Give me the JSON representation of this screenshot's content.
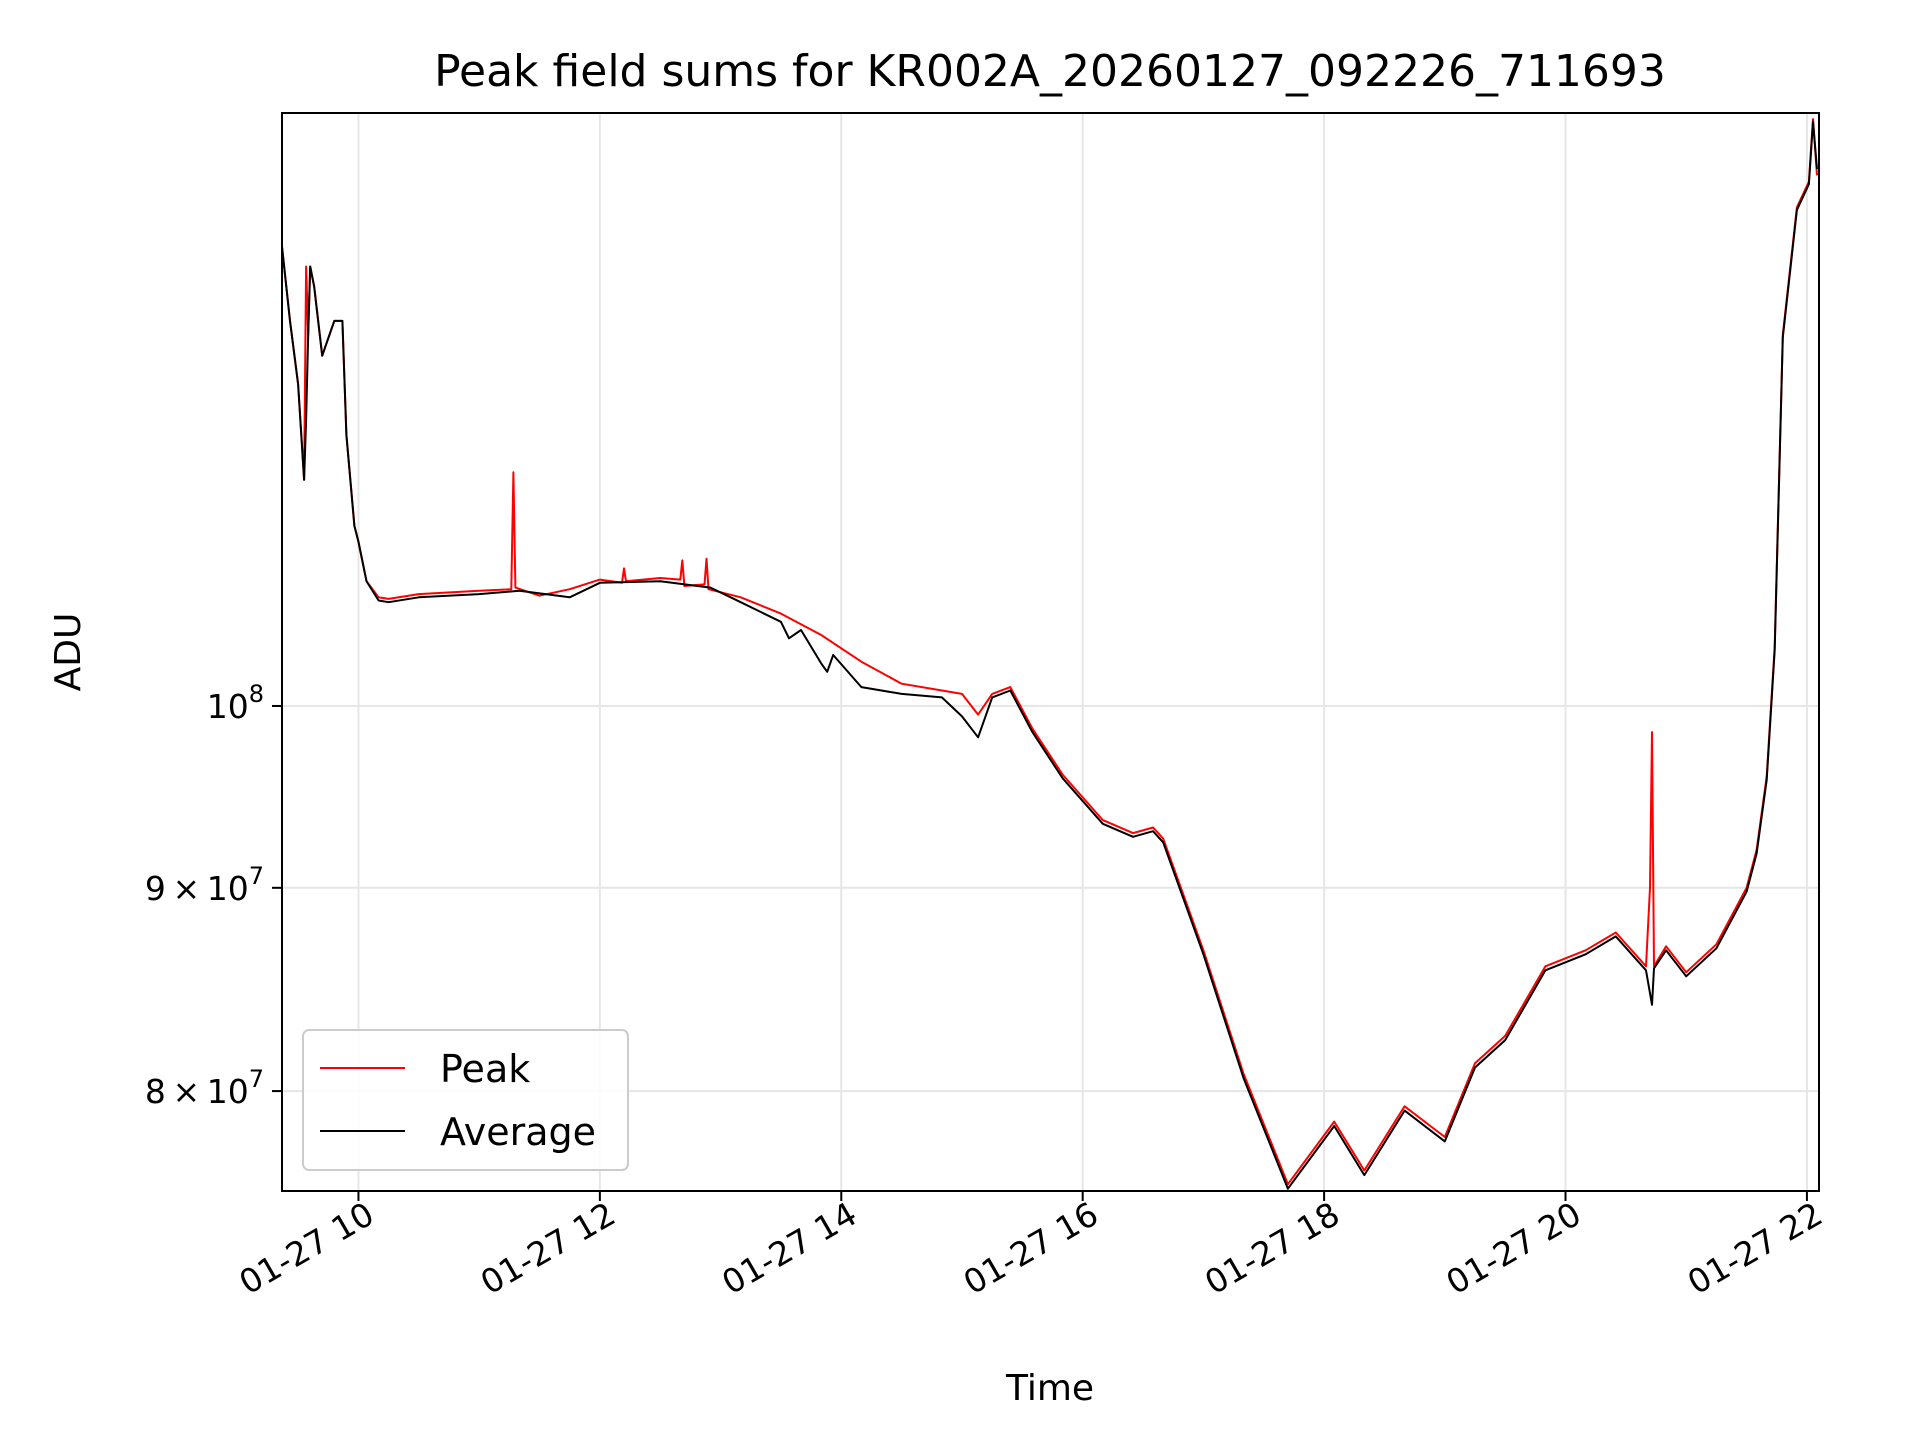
{
  "chart_data": {
    "type": "line",
    "title": "Peak field sums for KR002A_20260127_092226_711693",
    "xlabel": "Time",
    "ylabel": "ADU",
    "yscale": "log",
    "ylim": [
      75500000,
      141000000
    ],
    "xlim": [
      "2026-01-27 09:22",
      "2026-01-27 22:06"
    ],
    "grid": true,
    "legend_position": "lower-left",
    "x_ticks": [
      "01-27 10",
      "01-27 12",
      "01-27 14",
      "01-27 16",
      "01-27 18",
      "01-27 20",
      "01-27 22"
    ],
    "y_ticks": [
      {
        "value": 80000000,
        "mantissa": "8",
        "times": "×",
        "base": "10",
        "exp": "7"
      },
      {
        "value": 90000000,
        "mantissa": "9",
        "times": "×",
        "base": "10",
        "exp": "7"
      },
      {
        "value": 100000000,
        "mantissa": "",
        "times": "",
        "base": "10",
        "exp": "8"
      }
    ],
    "series": [
      {
        "name": "Peak",
        "color": "#ff0000",
        "x": [
          "2026-01-27 09:22",
          "2026-01-27 09:26",
          "2026-01-27 09:30",
          "2026-01-27 09:33",
          "2026-01-27 09:34",
          "2026-01-27 09:35",
          "2026-01-27 09:36",
          "2026-01-27 09:38",
          "2026-01-27 09:42",
          "2026-01-27 09:48",
          "2026-01-27 09:52",
          "2026-01-27 09:54",
          "2026-01-27 09:58",
          "2026-01-27 10:00",
          "2026-01-27 10:04",
          "2026-01-27 10:10",
          "2026-01-27 10:15",
          "2026-01-27 10:30",
          "2026-01-27 11:00",
          "2026-01-27 11:16",
          "2026-01-27 11:17",
          "2026-01-27 11:18",
          "2026-01-27 11:30",
          "2026-01-27 11:45",
          "2026-01-27 12:00",
          "2026-01-27 12:11",
          "2026-01-27 12:12",
          "2026-01-27 12:13",
          "2026-01-27 12:30",
          "2026-01-27 12:40",
          "2026-01-27 12:41",
          "2026-01-27 12:42",
          "2026-01-27 12:52",
          "2026-01-27 12:53",
          "2026-01-27 12:54",
          "2026-01-27 13:10",
          "2026-01-27 13:30",
          "2026-01-27 13:50",
          "2026-01-27 14:10",
          "2026-01-27 14:30",
          "2026-01-27 14:50",
          "2026-01-27 15:00",
          "2026-01-27 15:08",
          "2026-01-27 15:15",
          "2026-01-27 15:24",
          "2026-01-27 15:35",
          "2026-01-27 15:50",
          "2026-01-27 16:10",
          "2026-01-27 16:25",
          "2026-01-27 16:35",
          "2026-01-27 16:40",
          "2026-01-27 17:00",
          "2026-01-27 17:20",
          "2026-01-27 17:42",
          "2026-01-27 18:05",
          "2026-01-27 18:20",
          "2026-01-27 18:40",
          "2026-01-27 19:00",
          "2026-01-27 19:15",
          "2026-01-27 19:30",
          "2026-01-27 19:50",
          "2026-01-27 20:10",
          "2026-01-27 20:25",
          "2026-01-27 20:40",
          "2026-01-27 20:42",
          "2026-01-27 20:43",
          "2026-01-27 20:44",
          "2026-01-27 20:50",
          "2026-01-27 21:00",
          "2026-01-27 21:15",
          "2026-01-27 21:30",
          "2026-01-27 21:35",
          "2026-01-27 21:40",
          "2026-01-27 21:44",
          "2026-01-27 21:48",
          "2026-01-27 21:55",
          "2026-01-27 22:01",
          "2026-01-27 22:03",
          "2026-01-27 22:05"
        ],
        "values": [
          130500000,
          125000000,
          120500000,
          114000000,
          129000000,
          124000000,
          129000000,
          127500000,
          122500000,
          125000000,
          125000000,
          117000000,
          111000000,
          110000000,
          107500000,
          106500000,
          106400000,
          106700000,
          106900000,
          107000000,
          114500000,
          107100000,
          106600000,
          107000000,
          107600000,
          107400000,
          108300000,
          107500000,
          107700000,
          107600000,
          108800000,
          107200000,
          107300000,
          108900000,
          107000000,
          106500000,
          105500000,
          104200000,
          102600000,
          101300000,
          100900000,
          100700000,
          99500000,
          100700000,
          101100000,
          98700000,
          96100000,
          93600000,
          92900000,
          93200000,
          92600000,
          86800000,
          80800000,
          75800000,
          78600000,
          76400000,
          79300000,
          77900000,
          81300000,
          82600000,
          86000000,
          86800000,
          87700000,
          86000000,
          90000000,
          98500000,
          86000000,
          87000000,
          85700000,
          87100000,
          90000000,
          92000000,
          96000000,
          103500000,
          124000000,
          133500000,
          135500000,
          140500000,
          136000000
        ]
      },
      {
        "name": "Average",
        "color": "#000000",
        "x": [
          "2026-01-27 09:22",
          "2026-01-27 09:26",
          "2026-01-27 09:30",
          "2026-01-27 09:33",
          "2026-01-27 09:34",
          "2026-01-27 09:35",
          "2026-01-27 09:36",
          "2026-01-27 09:38",
          "2026-01-27 09:42",
          "2026-01-27 09:48",
          "2026-01-27 09:52",
          "2026-01-27 09:54",
          "2026-01-27 09:58",
          "2026-01-27 10:00",
          "2026-01-27 10:04",
          "2026-01-27 10:10",
          "2026-01-27 10:15",
          "2026-01-27 10:30",
          "2026-01-27 11:00",
          "2026-01-27 11:20",
          "2026-01-27 11:45",
          "2026-01-27 12:00",
          "2026-01-27 12:30",
          "2026-01-27 12:55",
          "2026-01-27 13:10",
          "2026-01-27 13:30",
          "2026-01-27 13:34",
          "2026-01-27 13:40",
          "2026-01-27 13:50",
          "2026-01-27 13:53",
          "2026-01-27 13:56",
          "2026-01-27 14:10",
          "2026-01-27 14:30",
          "2026-01-27 14:50",
          "2026-01-27 15:00",
          "2026-01-27 15:08",
          "2026-01-27 15:15",
          "2026-01-27 15:24",
          "2026-01-27 15:35",
          "2026-01-27 15:50",
          "2026-01-27 16:10",
          "2026-01-27 16:25",
          "2026-01-27 16:35",
          "2026-01-27 16:40",
          "2026-01-27 17:00",
          "2026-01-27 17:20",
          "2026-01-27 17:42",
          "2026-01-27 18:05",
          "2026-01-27 18:20",
          "2026-01-27 18:40",
          "2026-01-27 19:00",
          "2026-01-27 19:15",
          "2026-01-27 19:30",
          "2026-01-27 19:50",
          "2026-01-27 20:10",
          "2026-01-27 20:25",
          "2026-01-27 20:40",
          "2026-01-27 20:43",
          "2026-01-27 20:44",
          "2026-01-27 20:50",
          "2026-01-27 21:00",
          "2026-01-27 21:15",
          "2026-01-27 21:30",
          "2026-01-27 21:35",
          "2026-01-27 21:40",
          "2026-01-27 21:44",
          "2026-01-27 21:48",
          "2026-01-27 21:55",
          "2026-01-27 22:01",
          "2026-01-27 22:03",
          "2026-01-27 22:05"
        ],
        "values": [
          130500000,
          125000000,
          120500000,
          114000000,
          118000000,
          124000000,
          129000000,
          127500000,
          122500000,
          125000000,
          125000000,
          117000000,
          111000000,
          110000000,
          107500000,
          106300000,
          106200000,
          106500000,
          106700000,
          106900000,
          106500000,
          107400000,
          107500000,
          107100000,
          106200000,
          105000000,
          104000000,
          104500000,
          102500000,
          102000000,
          103000000,
          101100000,
          100700000,
          100500000,
          99400000,
          98200000,
          100500000,
          100900000,
          98500000,
          95900000,
          93400000,
          92700000,
          93000000,
          92400000,
          86600000,
          80600000,
          75600000,
          78400000,
          76200000,
          79100000,
          77700000,
          81100000,
          82400000,
          85800000,
          86600000,
          87500000,
          85800000,
          84100000,
          85900000,
          86800000,
          85500000,
          86900000,
          89800000,
          91800000,
          95800000,
          103300000,
          123800000,
          133300000,
          135300000,
          140300000,
          136500000
        ]
      }
    ]
  }
}
